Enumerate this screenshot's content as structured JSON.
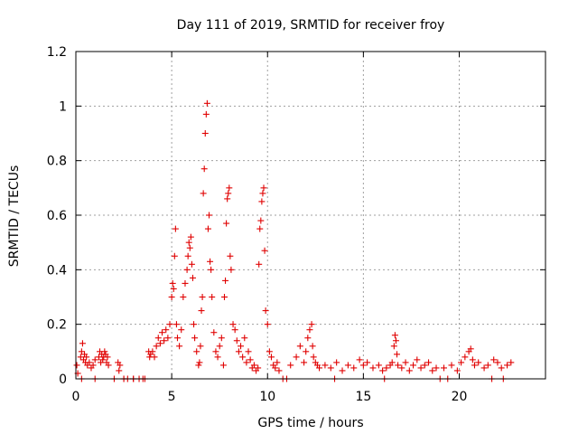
{
  "chart_data": {
    "type": "scatter",
    "title": "Day 111 of 2019, SRMTID for receiver froy",
    "xlabel": "GPS time / hours",
    "ylabel": "SRMTID / TECUs",
    "xlim": [
      0,
      24.5
    ],
    "ylim": [
      0,
      1.2
    ],
    "xticks": [
      0,
      5,
      10,
      15,
      20
    ],
    "xtick_labels": [
      "0",
      "5",
      "10",
      "15",
      "20"
    ],
    "yticks": [
      0,
      0.2,
      0.4,
      0.6,
      0.8,
      1.0,
      1.2
    ],
    "ytick_labels": [
      "0",
      "0.2",
      "0.4",
      "0.6",
      "0.8",
      "1",
      "1.2"
    ],
    "grid": true,
    "marker": "+",
    "marker_color": "#e00000",
    "series": [
      {
        "name": "SRMTID",
        "x": [
          0.05,
          0.1,
          0.25,
          0.3,
          0.35,
          0.4,
          0.45,
          0.5,
          0.55,
          0.6,
          0.7,
          0.8,
          0.9,
          1.0,
          1.2,
          1.25,
          1.3,
          1.35,
          1.4,
          1.45,
          1.5,
          1.55,
          1.6,
          1.65,
          1.7,
          2.2,
          2.25,
          2.3,
          2.5,
          2.7,
          3.0,
          3.3,
          3.6,
          3.8,
          3.85,
          3.9,
          4.0,
          4.1,
          4.2,
          4.3,
          4.4,
          4.5,
          4.6,
          4.7,
          4.8,
          4.9,
          5.0,
          5.05,
          5.1,
          5.15,
          5.2,
          5.25,
          5.3,
          5.4,
          5.5,
          5.6,
          5.7,
          5.8,
          5.85,
          5.9,
          5.95,
          6.0,
          6.05,
          6.1,
          6.15,
          6.2,
          6.3,
          6.4,
          6.45,
          6.5,
          6.55,
          6.6,
          6.65,
          6.7,
          6.75,
          6.8,
          6.85,
          6.9,
          6.95,
          7.0,
          7.05,
          7.1,
          7.2,
          7.3,
          7.4,
          7.5,
          7.6,
          7.7,
          7.75,
          7.8,
          7.85,
          7.9,
          7.95,
          8.0,
          8.05,
          8.1,
          8.2,
          8.3,
          8.4,
          8.5,
          8.6,
          8.7,
          8.8,
          8.9,
          9.0,
          9.1,
          9.2,
          9.3,
          9.4,
          9.5,
          9.55,
          9.6,
          9.65,
          9.7,
          9.75,
          9.8,
          9.85,
          9.9,
          10.0,
          10.1,
          10.2,
          10.3,
          10.4,
          10.5,
          10.6,
          11.2,
          11.5,
          11.7,
          11.9,
          12.0,
          12.1,
          12.2,
          12.3,
          12.35,
          12.4,
          12.5,
          12.6,
          12.7,
          13.0,
          13.3,
          13.6,
          13.9,
          14.2,
          14.5,
          14.8,
          15.0,
          15.2,
          15.5,
          15.8,
          16.0,
          16.2,
          16.4,
          16.5,
          16.6,
          16.65,
          16.7,
          16.75,
          16.8,
          17.0,
          17.2,
          17.4,
          17.6,
          17.8,
          18.0,
          18.2,
          18.4,
          18.6,
          18.8,
          19.2,
          19.6,
          19.9,
          20.1,
          20.3,
          20.5,
          20.6,
          20.7,
          20.8,
          21.0,
          21.3,
          21.5,
          21.8,
          22.0,
          22.2,
          22.5,
          22.7,
          0.3,
          1.0,
          2.0,
          2.5,
          3.0,
          3.5,
          10.8,
          11.0,
          13.5,
          16.1,
          19.0,
          19.4,
          21.7,
          22.3
        ],
        "y": [
          0.05,
          0.02,
          0.08,
          0.1,
          0.13,
          0.07,
          0.09,
          0.06,
          0.08,
          0.05,
          0.06,
          0.04,
          0.05,
          0.07,
          0.08,
          0.1,
          0.06,
          0.09,
          0.07,
          0.08,
          0.1,
          0.09,
          0.06,
          0.08,
          0.05,
          0.06,
          0.03,
          0.05,
          0.0,
          0.0,
          0.0,
          0.0,
          0.0,
          0.1,
          0.08,
          0.09,
          0.1,
          0.08,
          0.12,
          0.15,
          0.13,
          0.17,
          0.14,
          0.18,
          0.15,
          0.2,
          0.3,
          0.35,
          0.33,
          0.45,
          0.55,
          0.2,
          0.15,
          0.12,
          0.18,
          0.3,
          0.35,
          0.4,
          0.45,
          0.5,
          0.48,
          0.52,
          0.42,
          0.37,
          0.2,
          0.15,
          0.1,
          0.05,
          0.06,
          0.12,
          0.25,
          0.3,
          0.68,
          0.77,
          0.9,
          0.97,
          1.01,
          0.55,
          0.6,
          0.43,
          0.4,
          0.3,
          0.17,
          0.1,
          0.08,
          0.12,
          0.15,
          0.05,
          0.3,
          0.36,
          0.57,
          0.66,
          0.68,
          0.7,
          0.45,
          0.4,
          0.2,
          0.18,
          0.14,
          0.1,
          0.12,
          0.08,
          0.15,
          0.06,
          0.1,
          0.07,
          0.04,
          0.05,
          0.03,
          0.04,
          0.42,
          0.55,
          0.58,
          0.65,
          0.68,
          0.7,
          0.47,
          0.25,
          0.2,
          0.1,
          0.08,
          0.05,
          0.04,
          0.06,
          0.03,
          0.05,
          0.08,
          0.12,
          0.06,
          0.1,
          0.15,
          0.18,
          0.2,
          0.12,
          0.08,
          0.06,
          0.05,
          0.04,
          0.05,
          0.04,
          0.06,
          0.03,
          0.05,
          0.04,
          0.07,
          0.05,
          0.06,
          0.04,
          0.05,
          0.03,
          0.04,
          0.05,
          0.06,
          0.12,
          0.16,
          0.14,
          0.09,
          0.05,
          0.04,
          0.06,
          0.03,
          0.05,
          0.07,
          0.04,
          0.05,
          0.06,
          0.03,
          0.04,
          0.04,
          0.05,
          0.03,
          0.06,
          0.08,
          0.1,
          0.11,
          0.07,
          0.05,
          0.06,
          0.04,
          0.05,
          0.07,
          0.06,
          0.04,
          0.05,
          0.06,
          0.0,
          0.0,
          0.0,
          0.0,
          0.0,
          0.0,
          0.0,
          0.0,
          0.0,
          0.0,
          0.0,
          0.0,
          0.0,
          0.0
        ]
      }
    ]
  }
}
